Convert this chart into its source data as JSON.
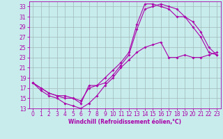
{
  "xlabel": "Windchill (Refroidissement éolien,°C)",
  "bg_color": "#c8ecec",
  "line_color": "#aa00aa",
  "grid_color": "#a0b8b8",
  "xlim": [
    -0.5,
    23.5
  ],
  "ylim": [
    13,
    34
  ],
  "yticks": [
    13,
    15,
    17,
    19,
    21,
    23,
    25,
    27,
    29,
    31,
    33
  ],
  "xticks": [
    0,
    1,
    2,
    3,
    4,
    5,
    6,
    7,
    8,
    9,
    10,
    11,
    12,
    13,
    14,
    15,
    16,
    17,
    18,
    19,
    20,
    21,
    22,
    23
  ],
  "line1_x": [
    0,
    1,
    2,
    3,
    4,
    5,
    6,
    7,
    8,
    9,
    10,
    11,
    12,
    13,
    14,
    15,
    16,
    17,
    18,
    19,
    20,
    21,
    22,
    23
  ],
  "line1_y": [
    18,
    17,
    16,
    15.5,
    15.5,
    15,
    14.5,
    17,
    17.5,
    19,
    20.5,
    22,
    24,
    29.5,
    33.5,
    33.5,
    33,
    32.5,
    31,
    31,
    30,
    28,
    25,
    23.5
  ],
  "line2_x": [
    0,
    1,
    2,
    3,
    4,
    5,
    6,
    7,
    8,
    9,
    10,
    11,
    12,
    13,
    14,
    15,
    16,
    17,
    18,
    19,
    20,
    21,
    22,
    23
  ],
  "line2_y": [
    18,
    17,
    16,
    15.5,
    15,
    15,
    14,
    17.5,
    17.5,
    18,
    19.5,
    21.5,
    23.5,
    28.5,
    32.5,
    33,
    33.5,
    33,
    32.5,
    31,
    29,
    27,
    24,
    23.5
  ],
  "line3_x": [
    0,
    1,
    2,
    3,
    4,
    5,
    6,
    7,
    8,
    9,
    10,
    11,
    12,
    13,
    14,
    15,
    16,
    17,
    18,
    19,
    20,
    21,
    22,
    23
  ],
  "line3_y": [
    18,
    16.5,
    15.5,
    15,
    14,
    13.5,
    13,
    14,
    15.5,
    17.5,
    19,
    21,
    22.5,
    24,
    25,
    25.5,
    26,
    23,
    23,
    23.5,
    23,
    23,
    23.5,
    24
  ],
  "tick_fontsize": 5.5,
  "xlabel_fontsize": 5.5,
  "marker_size": 2.0,
  "line_width": 0.8
}
